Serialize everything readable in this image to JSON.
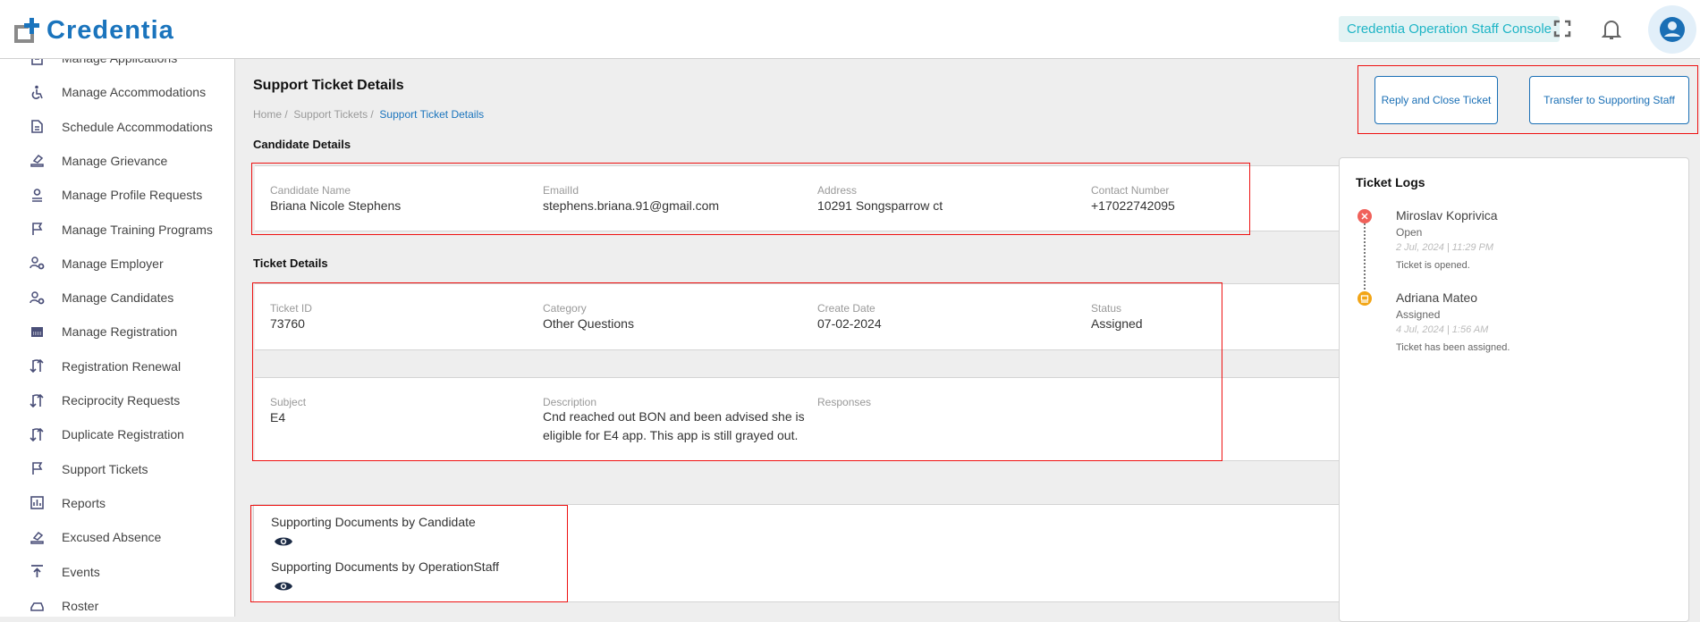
{
  "header": {
    "logo_text": "Credentia",
    "console_label": "Credentia Operation Staff Console",
    "icons": [
      "fullscreen-icon",
      "bell-icon",
      "account-circle-icon"
    ]
  },
  "sidebar": {
    "items": [
      {
        "label": "Manage Applications",
        "icon": "application-icon"
      },
      {
        "label": "Manage Accommodations",
        "icon": "accessibility-icon"
      },
      {
        "label": "Schedule Accommodations",
        "icon": "document-icon"
      },
      {
        "label": "Manage Grievance",
        "icon": "gavel-icon"
      },
      {
        "label": "Manage Profile Requests",
        "icon": "person-icon"
      },
      {
        "label": "Manage Training Programs",
        "icon": "flag-icon"
      },
      {
        "label": "Manage Employer",
        "icon": "user-gear-icon"
      },
      {
        "label": "Manage Candidates",
        "icon": "user-gear-icon"
      },
      {
        "label": "Manage Registration",
        "icon": "registration-icon"
      },
      {
        "label": "Registration Renewal",
        "icon": "swap-icon"
      },
      {
        "label": "Reciprocity Requests",
        "icon": "swap-icon"
      },
      {
        "label": "Duplicate Registration",
        "icon": "swap-icon"
      },
      {
        "label": "Support Tickets",
        "icon": "flag-icon"
      },
      {
        "label": "Reports",
        "icon": "chart-icon"
      },
      {
        "label": "Excused Absence",
        "icon": "gavel-icon"
      },
      {
        "label": "Events",
        "icon": "upload-icon"
      },
      {
        "label": "Roster",
        "icon": "tray-icon"
      }
    ]
  },
  "page": {
    "title": "Support Ticket Details",
    "breadcrumb": [
      "Home",
      "Support Tickets",
      "Support Ticket Details"
    ]
  },
  "actions": {
    "reply_close": "Reply and Close Ticket",
    "transfer": "Transfer to Supporting Staff"
  },
  "candidate": {
    "heading": "Candidate Details",
    "fields": [
      {
        "label": "Candidate Name",
        "value": "Briana Nicole Stephens"
      },
      {
        "label": "EmailId",
        "value": "stephens.briana.91@gmail.com"
      },
      {
        "label": "Address",
        "value": "10291 Songsparrow ct"
      },
      {
        "label": "Contact Number",
        "value": "+17022742095"
      }
    ]
  },
  "ticket": {
    "heading": "Ticket Details",
    "row1": [
      {
        "label": "Ticket ID",
        "value": "73760"
      },
      {
        "label": "Category",
        "value": "Other Questions"
      },
      {
        "label": "Create Date",
        "value": "07-02-2024"
      },
      {
        "label": "Status",
        "value": "Assigned"
      }
    ],
    "row2": [
      {
        "label": "Subject",
        "value": "E4"
      },
      {
        "label": "Description",
        "value": "Cnd reached out BON and been advised she is eligible for E4 app. This app is still grayed out."
      },
      {
        "label": "Responses",
        "value": ""
      }
    ]
  },
  "documents": {
    "by_candidate": "Supporting Documents by Candidate",
    "by_staff": "Supporting Documents by OperationStaff"
  },
  "logs": {
    "heading": "Ticket Logs",
    "entries": [
      {
        "name": "Miroslav Koprivica",
        "status": "Open",
        "datetime": "2 Jul, 2024 | 11:29 PM",
        "message": "Ticket is opened.",
        "color": "#f0615a"
      },
      {
        "name": "Adriana Mateo",
        "status": "Assigned",
        "datetime": "4 Jul, 2024 | 1:56 AM",
        "message": "Ticket has been assigned.",
        "color": "#f2a516"
      }
    ]
  },
  "colors": {
    "brand": "#1a74bd",
    "accent": "#1a6fb5",
    "highlight": "#ee1111"
  }
}
